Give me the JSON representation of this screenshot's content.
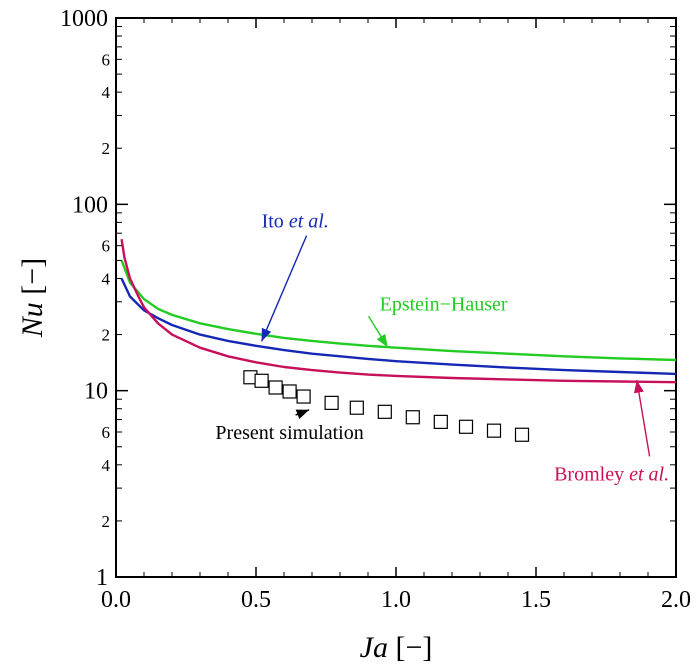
{
  "chart_data": {
    "type": "line",
    "x_axis": {
      "label_var": "Ja",
      "label_unit": " [−]",
      "range": [
        0.0,
        2.0
      ],
      "ticks": [
        0.0,
        0.5,
        1.0,
        1.5,
        2.0
      ],
      "tick_labels": [
        "0.0",
        "0.5",
        "1.0",
        "1.5",
        "2.0"
      ]
    },
    "y_axis": {
      "label_var": "Nu",
      "label_unit": " [−]",
      "scale": "log",
      "range": [
        1,
        1000
      ],
      "ticks": [
        1,
        10,
        100,
        1000
      ],
      "tick_labels": [
        "1",
        "10",
        "100",
        "1000"
      ],
      "minor_labeled": [
        2,
        4,
        6,
        20,
        40,
        60,
        200,
        400,
        600
      ],
      "minor_tick_labels": [
        "2",
        "4",
        "6",
        "2",
        "4",
        "6",
        "2",
        "4",
        "6"
      ]
    },
    "grid": false,
    "series": [
      {
        "name": "Ito et al.",
        "name_main": "Ito ",
        "name_ital": "et al.",
        "kind": "line",
        "color": "#1428b4",
        "x": [
          0.02,
          0.05,
          0.1,
          0.15,
          0.2,
          0.3,
          0.4,
          0.5,
          0.6,
          0.7,
          0.8,
          0.9,
          1.0,
          1.2,
          1.4,
          1.6,
          1.8,
          2.0
        ],
        "y": [
          40,
          32,
          27,
          24.5,
          22.5,
          20,
          18.5,
          17.4,
          16.5,
          15.8,
          15.3,
          14.8,
          14.4,
          13.8,
          13.3,
          12.9,
          12.6,
          12.3
        ]
      },
      {
        "name": "Epstein−Hauser",
        "kind": "line",
        "color": "#22cc22",
        "x": [
          0.02,
          0.05,
          0.1,
          0.15,
          0.2,
          0.3,
          0.4,
          0.5,
          0.6,
          0.7,
          0.8,
          0.9,
          1.0,
          1.2,
          1.4,
          1.6,
          1.8,
          2.0
        ],
        "y": [
          50,
          38,
          31,
          27.5,
          25.5,
          23,
          21.4,
          20.2,
          19.2,
          18.5,
          17.9,
          17.4,
          17,
          16.3,
          15.8,
          15.3,
          14.9,
          14.6
        ]
      },
      {
        "name": "Bromley et al.",
        "name_main": "Bromley ",
        "name_ital": "et al.",
        "kind": "line",
        "color": "#c8105a",
        "x": [
          0.02,
          0.03,
          0.05,
          0.08,
          0.1,
          0.15,
          0.2,
          0.3,
          0.4,
          0.5,
          0.6,
          0.7,
          0.8,
          0.9,
          1.0,
          1.2,
          1.4,
          1.6,
          1.8,
          2.0
        ],
        "y": [
          65,
          52,
          40,
          32,
          28,
          23,
          20,
          17,
          15.3,
          14.2,
          13.4,
          12.9,
          12.5,
          12.2,
          12,
          11.7,
          11.5,
          11.3,
          11.2,
          11.1
        ]
      },
      {
        "name": "Present simulation",
        "kind": "scatter",
        "color": "#000000",
        "x": [
          0.48,
          0.52,
          0.57,
          0.62,
          0.67,
          0.77,
          0.86,
          0.96,
          1.06,
          1.16,
          1.25,
          1.35,
          1.45
        ],
        "y": [
          11.8,
          11.3,
          10.4,
          9.9,
          9.3,
          8.6,
          8.1,
          7.7,
          7.2,
          6.8,
          6.4,
          6.1,
          5.8
        ]
      }
    ],
    "annotations": [
      {
        "series": 0,
        "tx": 0.52,
        "ty": 75,
        "ax": 0.52,
        "ay": 18.4,
        "anchor": "start"
      },
      {
        "series": 1,
        "tx": 1.17,
        "ty": 27,
        "ax": 0.97,
        "ay": 17.1,
        "anchor": "middle"
      },
      {
        "series": 2,
        "tx": 1.77,
        "ty": 3.3,
        "ax": 1.86,
        "ay": 11.4,
        "anchor": "middle"
      },
      {
        "series": 3,
        "tx": 0.62,
        "ty": 5.5,
        "ax": 0.69,
        "ay": 7.9,
        "anchor": "middle"
      }
    ]
  }
}
